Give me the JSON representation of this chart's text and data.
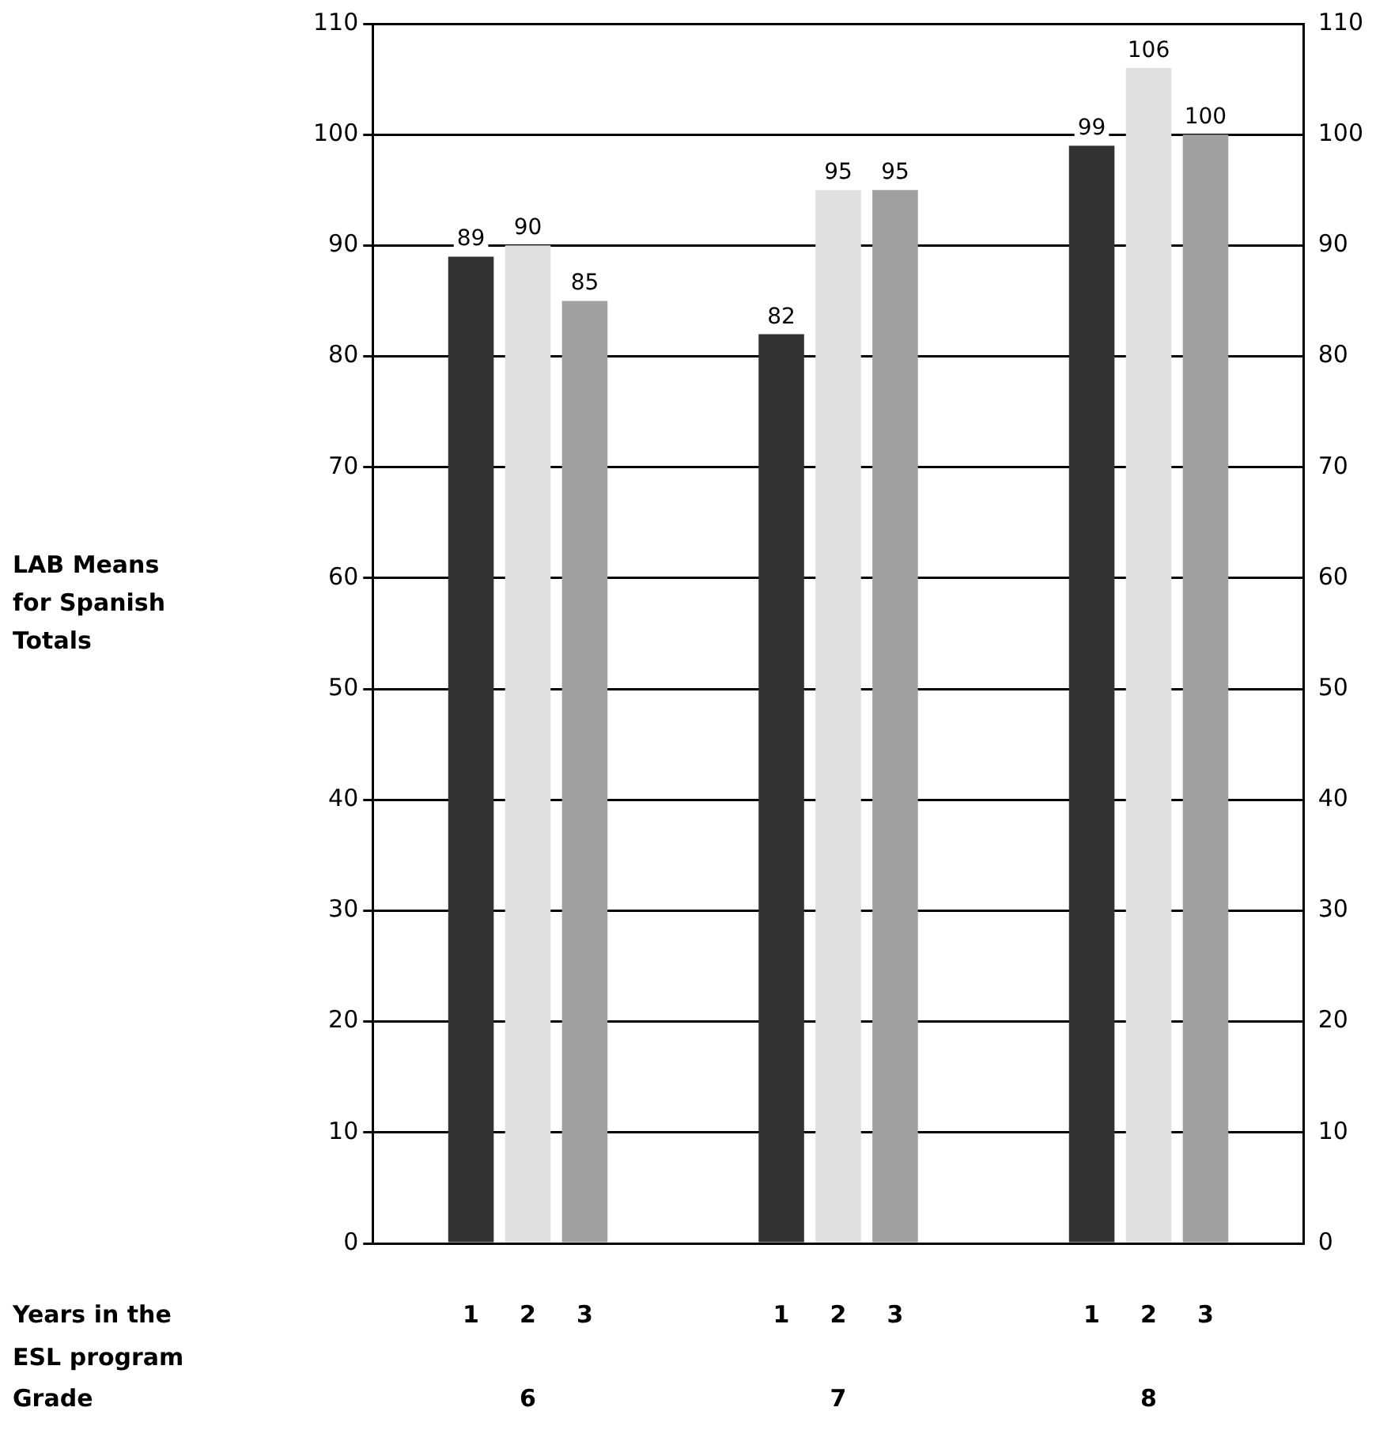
{
  "chart_data": {
    "type": "bar",
    "categories": [
      "6",
      "7",
      "8"
    ],
    "series": [
      {
        "name": "1",
        "color": "#333333",
        "values": [
          89,
          82,
          99
        ]
      },
      {
        "name": "2",
        "color": "#e0e0e0",
        "values": [
          90,
          95,
          106
        ]
      },
      {
        "name": "3",
        "color": "#a0a0a0",
        "values": [
          85,
          95,
          100
        ]
      }
    ],
    "ylim": [
      0,
      110
    ],
    "yticks": [
      0,
      10,
      20,
      30,
      40,
      50,
      60,
      70,
      80,
      90,
      100,
      110
    ],
    "y2lim": [
      0,
      110
    ],
    "y2ticks": [
      0,
      10,
      20,
      30,
      40,
      50,
      60,
      70,
      80,
      90,
      100,
      110
    ],
    "grid": "y",
    "legend": false,
    "data_labels": true,
    "annotations": [
      "LAB Means for Spanish Totals",
      "Years in the ESL program",
      "Grade"
    ]
  }
}
